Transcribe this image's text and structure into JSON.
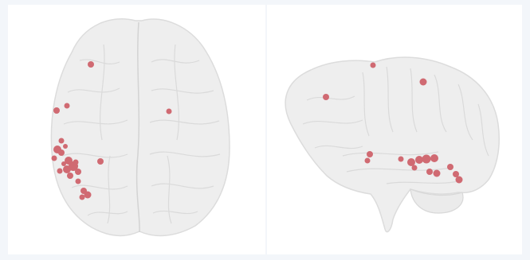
{
  "colors": {
    "background": "#f3f6fa",
    "panel": "#ffffff",
    "brain_fill": "#eeeeee",
    "brain_stroke": "#dcdcdc",
    "sulci": "#d7d7d7",
    "activation": "#d06a72"
  },
  "views": [
    {
      "name": "axial",
      "activation_count": 22
    },
    {
      "name": "sagittal",
      "activation_count": 16
    }
  ]
}
